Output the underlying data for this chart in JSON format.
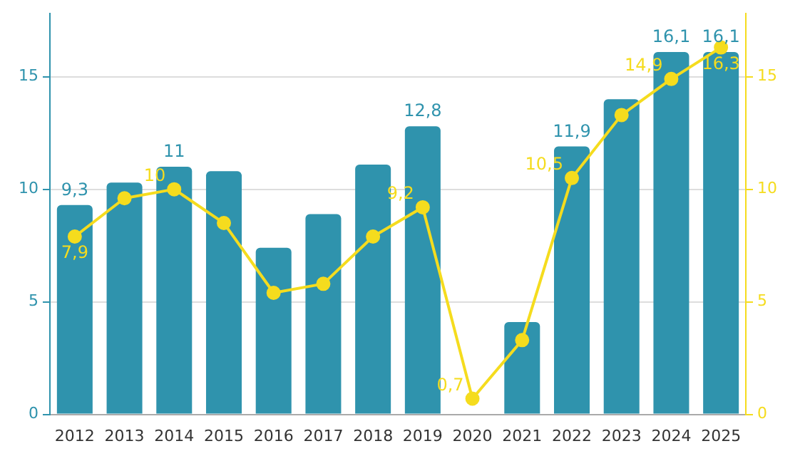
{
  "chart_data": {
    "type": "bar",
    "categories": [
      "2012",
      "2013",
      "2014",
      "2015",
      "2016",
      "2017",
      "2018",
      "2019",
      "2020",
      "2021",
      "2022",
      "2023",
      "2024",
      "2025"
    ],
    "series": [
      {
        "color": "#2f93ad",
        "values": [
          9.3,
          10.3,
          11,
          10.8,
          7.4,
          8.9,
          11.1,
          12.8,
          null,
          4.1,
          11.9,
          14.0,
          16.1,
          16.1
        ],
        "value_labels": [
          "9,3",
          null,
          "11",
          null,
          null,
          null,
          null,
          "12,8",
          null,
          null,
          "11,9",
          null,
          "16,1",
          "16,1"
        ]
      },
      {
        "type": "line",
        "axis": "y2",
        "color": "#f5dc1e",
        "marker": "circle",
        "values": [
          7.9,
          9.6,
          10,
          8.5,
          5.4,
          5.8,
          7.9,
          9.2,
          0.7,
          3.3,
          10.5,
          13.3,
          14.9,
          16.3
        ],
        "value_labels": [
          "7,9",
          null,
          "10",
          null,
          null,
          null,
          null,
          "9,2",
          "0,7",
          null,
          "10,5",
          null,
          "14,9",
          "16,3"
        ]
      }
    ],
    "ylim": [
      0,
      17.8
    ],
    "yticks": [
      0,
      5,
      10,
      15
    ],
    "y2lim": [
      0,
      17.8
    ],
    "y2ticks": [
      0,
      5,
      10,
      15
    ],
    "grid": "y",
    "legend": false
  }
}
